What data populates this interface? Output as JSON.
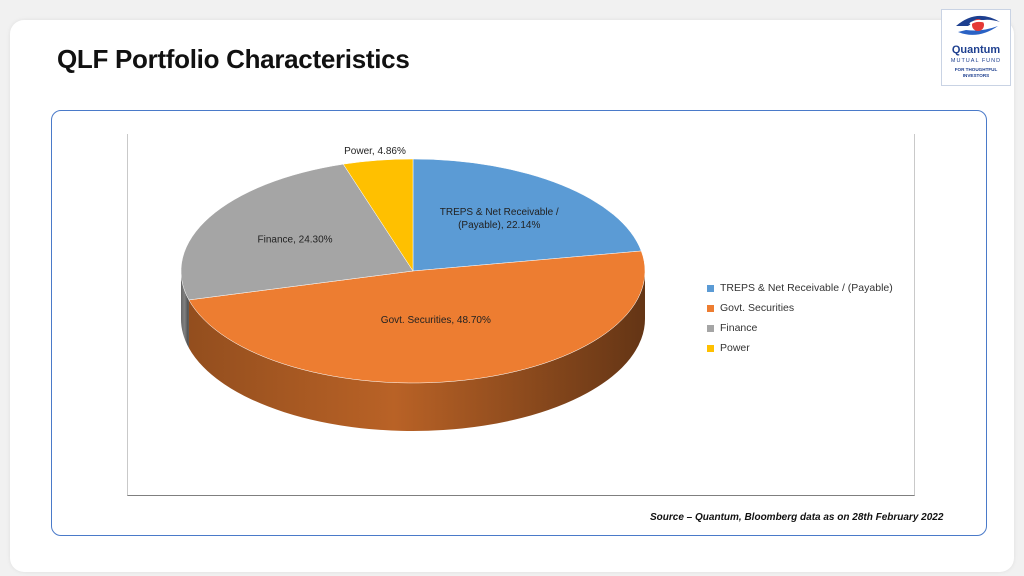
{
  "slide": {
    "title": "QLF Portfolio Characteristics",
    "source": "Source – Quantum, Bloomberg data as on 28th February 2022"
  },
  "logo": {
    "brand": "Quantum",
    "sub": "MUTUAL FUND",
    "tagline": [
      "FOR THOUGHTFUL",
      "INVESTORS"
    ]
  },
  "chart_data": {
    "type": "pie",
    "title": "",
    "legend_position": "right",
    "slices": [
      {
        "label": "TREPS & Net Receivable / (Payable)",
        "value": 22.14,
        "data_label": "TREPS & Net Receivable / (Payable), 22.14%",
        "color": "#5b9bd5"
      },
      {
        "label": "Govt. Securities",
        "value": 48.7,
        "data_label": "Govt. Securities, 48.70%",
        "color": "#ed7d31"
      },
      {
        "label": "Finance",
        "value": 24.3,
        "data_label": "Finance, 24.30%",
        "color": "#a5a5a5"
      },
      {
        "label": "Power",
        "value": 4.86,
        "data_label": "Power, 4.86%",
        "color": "#ffc000"
      }
    ]
  }
}
